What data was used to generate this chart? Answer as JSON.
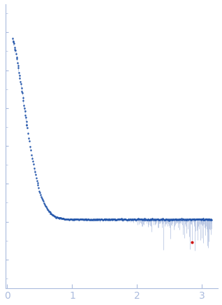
{
  "xlim": [
    -0.03,
    3.25
  ],
  "ylim": [
    -0.35,
    1.15
  ],
  "xticks": [
    0,
    1,
    2,
    3
  ],
  "background_color": "#ffffff",
  "dot_color": "#2255aa",
  "error_color": "#aabbdd",
  "outlier_color": "#cc1111",
  "dot_size": 3.5,
  "seed": 42,
  "q_min": 0.08,
  "q_max": 3.15,
  "I0": 1.0,
  "Rg": 4.8,
  "background": 0.012,
  "outlier_q": 2.85,
  "outlier_I": -0.11,
  "spine_color": "#aabbdd",
  "tick_color": "#aabbdd"
}
